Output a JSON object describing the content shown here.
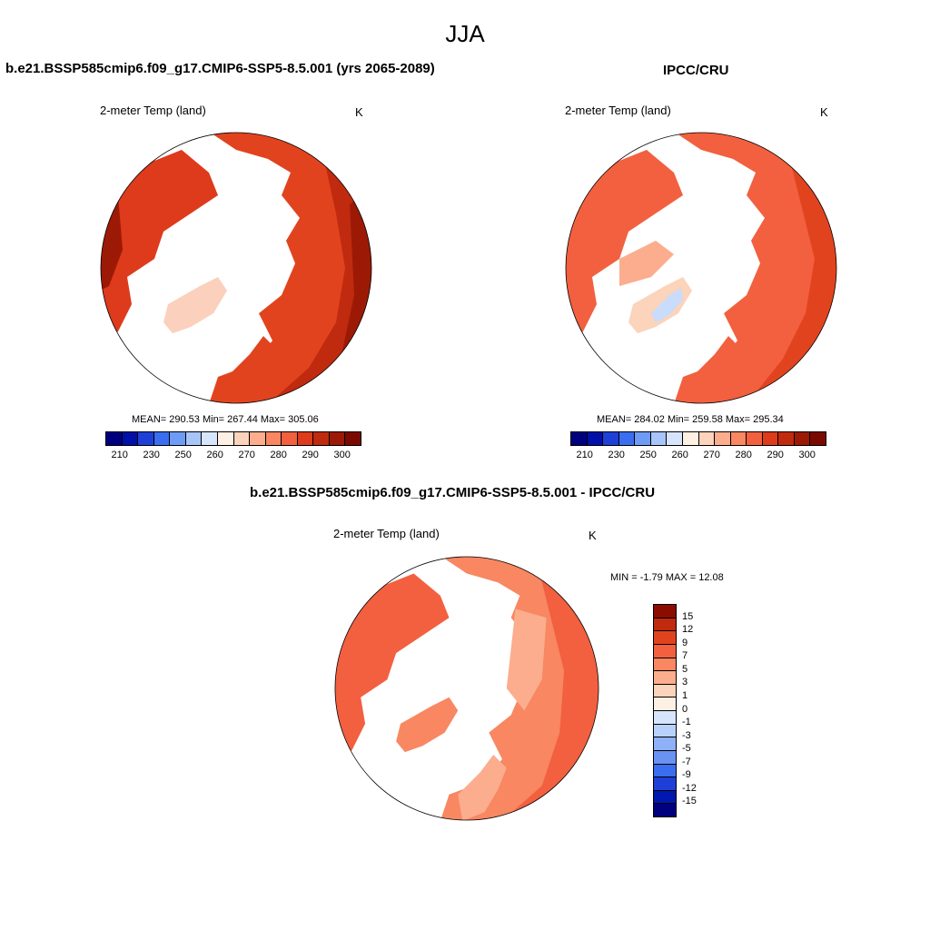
{
  "season": "JJA",
  "panel_left": {
    "title": "b.e21.BSSP585cmip6.f09_g17.CMIP6-SSP5-8.5.001 (yrs 2065-2089)",
    "field": "2-meter Temp (land)",
    "units": "K",
    "stats": "MEAN= 290.53  Min= 267.44  Max= 305.06"
  },
  "panel_right": {
    "title": "IPCC/CRU",
    "field": "2-meter Temp (land)",
    "units": "K",
    "stats": "MEAN= 284.02  Min= 259.58  Max= 295.34"
  },
  "panel_diff": {
    "title": "b.e21.BSSP585cmip6.f09_g17.CMIP6-SSP5-8.5.001 - IPCC/CRU",
    "field": "2-meter Temp (land)",
    "units": "K",
    "minmax": "MIN =  -1.79 MAX =  12.08"
  },
  "abs_colorbar": {
    "colors": [
      "#00007f",
      "#0010a8",
      "#1f40d8",
      "#3a6df0",
      "#6e9bf5",
      "#a8c5fa",
      "#d6e5fc",
      "#fff0e4",
      "#fcd3bb",
      "#fbad8d",
      "#f88762",
      "#f2603f",
      "#de3a1c",
      "#c02a0e",
      "#9c1a05",
      "#7a0a00"
    ],
    "labels": [
      "210",
      "230",
      "250",
      "260",
      "270",
      "280",
      "290",
      "300"
    ]
  },
  "diff_colorbar": {
    "colors": [
      "#8c0c00",
      "#c02a0e",
      "#e2431f",
      "#f2603f",
      "#f88762",
      "#fbad8d",
      "#fcd3bb",
      "#fff0e4",
      "#d6e5fc",
      "#b9d2fb",
      "#8fb1f7",
      "#6a92f2",
      "#3a6df0",
      "#1f40d8",
      "#0018b0",
      "#00007f"
    ],
    "labels": [
      "15",
      "12",
      "9",
      "7",
      "5",
      "3",
      "1",
      "0",
      "-1",
      "-3",
      "-5",
      "-7",
      "-9",
      "-12",
      "-15"
    ]
  }
}
